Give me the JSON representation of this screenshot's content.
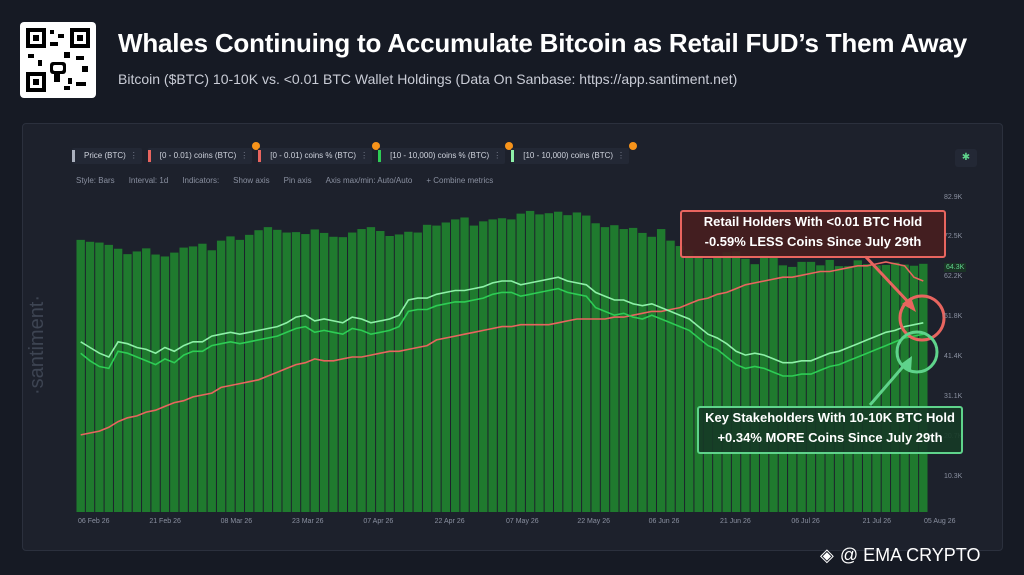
{
  "header": {
    "title": "Whales Continuing to Accumulate Bitcoin as Retail FUD’s Them Away",
    "subtitle": "Bitcoin ($BTC) 10-10K vs. <0.01 BTC Wallet Holdings (Data On Sanbase: https://app.santiment.net)"
  },
  "legend": [
    {
      "label": "Price (BTC)",
      "color": "#aab0bd"
    },
    {
      "label": "[0 - 0.01) coins (BTC)",
      "color": "#e8655f"
    },
    {
      "label": "[0 - 0.01) coins % (BTC)",
      "color": "#e8655f"
    },
    {
      "label": "[10 - 10,000) coins % (BTC)",
      "color": "#2ecc55"
    },
    {
      "label": "[10 - 10,000) coins (BTC)",
      "color": "#8ef0a8"
    }
  ],
  "toolbar": {
    "style": "Style: Bars",
    "interval": "Interval: 1d",
    "indicators": "Indicators:",
    "show_axis": "Show axis",
    "pin_axis": "Pin axis",
    "axis_minmax": "Axis max/min: Auto/Auto",
    "combine": "+ Combine metrics"
  },
  "watermark": "·santiment·",
  "annotations": {
    "retail_line1": "Retail Holders With <0.01 BTC Hold",
    "retail_line2": "-0.59% LESS Coins Since July 29th",
    "whale_line1": "Key Stakeholders With 10-10K BTC Hold",
    "whale_line2": "+0.34% MORE Coins Since July 29th"
  },
  "footer": "@ EMA CRYPTO",
  "chart_data": {
    "type": "bar",
    "x_ticks": [
      "06 Feb 26",
      "21 Feb 26",
      "08 Mar 26",
      "23 Mar 26",
      "07 Apr 26",
      "22 Apr 26",
      "07 May 26",
      "22 May 26",
      "06 Jun 26",
      "21 Jun 26",
      "06 Jul 26",
      "21 Jul 26",
      "05 Aug 26"
    ],
    "y_ticks_right": [
      "82.9K",
      "72.5K",
      "62.2K",
      "51.8K",
      "41.4K",
      "31.1K",
      "20.7K",
      "10.3K"
    ],
    "current_price_tag": "64.3K",
    "ylim": [
      0,
      82900
    ],
    "series": [
      {
        "name": "Price (BTC)",
        "kind": "bar",
        "color": "#1f7a2e",
        "values": [
          70500,
          70000,
          69800,
          69200,
          68200,
          66800,
          67500,
          68300,
          66700,
          66200,
          67200,
          68500,
          68800,
          69500,
          67800,
          70300,
          71400,
          70500,
          71800,
          73000,
          73800,
          73100,
          72400,
          72500,
          72000,
          73200,
          72300,
          71300,
          71200,
          72400,
          73300,
          73800,
          72800,
          71500,
          71900,
          72600,
          72400,
          74400,
          74200,
          75000,
          75800,
          76300,
          74200,
          75300,
          75800,
          76100,
          75800,
          77300,
          78000,
          77100,
          77400,
          77800,
          76900,
          77600,
          76800,
          74800,
          73800,
          74300,
          73300,
          73600,
          72300,
          71300,
          73300,
          70300,
          68900,
          67800,
          66400,
          65600,
          66400,
          67300,
          67500,
          65600,
          64200,
          66500,
          65800,
          63900,
          63500,
          64800,
          64800,
          63900,
          65300,
          63700,
          63700,
          65200,
          64200,
          63900,
          64000,
          64600,
          64100,
          63800,
          64300
        ]
      },
      {
        "name": "[0 - 0.01) coins % (BTC)",
        "kind": "line",
        "color": "#e8655f",
        "values": [
          0.09,
          0.1,
          0.11,
          0.13,
          0.16,
          0.18,
          0.19,
          0.21,
          0.22,
          0.24,
          0.26,
          0.27,
          0.29,
          0.3,
          0.31,
          0.34,
          0.35,
          0.36,
          0.37,
          0.38,
          0.4,
          0.42,
          0.44,
          0.46,
          0.47,
          0.49,
          0.48,
          0.48,
          0.49,
          0.5,
          0.5,
          0.51,
          0.52,
          0.53,
          0.53,
          0.54,
          0.55,
          0.56,
          0.59,
          0.6,
          0.61,
          0.62,
          0.63,
          0.64,
          0.65,
          0.66,
          0.66,
          0.67,
          0.67,
          0.67,
          0.67,
          0.68,
          0.69,
          0.7,
          0.7,
          0.7,
          0.7,
          0.71,
          0.71,
          0.72,
          0.73,
          0.74,
          0.74,
          0.75,
          0.76,
          0.78,
          0.8,
          0.81,
          0.83,
          0.84,
          0.86,
          0.88,
          0.89,
          0.9,
          0.91,
          0.92,
          0.92,
          0.93,
          0.94,
          0.95,
          0.95,
          0.96,
          0.97,
          0.98,
          0.98,
          0.99,
          1.0,
          0.99,
          0.98,
          0.92,
          0.9
        ]
      },
      {
        "name": "[10 - 10,000) coins % (BTC)",
        "kind": "line",
        "color": "#2ecc55",
        "values": [
          0.52,
          0.48,
          0.45,
          0.44,
          0.53,
          0.52,
          0.5,
          0.48,
          0.46,
          0.49,
          0.47,
          0.51,
          0.53,
          0.53,
          0.56,
          0.57,
          0.58,
          0.57,
          0.58,
          0.59,
          0.6,
          0.61,
          0.63,
          0.65,
          0.66,
          0.63,
          0.64,
          0.63,
          0.62,
          0.65,
          0.64,
          0.62,
          0.63,
          0.64,
          0.66,
          0.74,
          0.75,
          0.75,
          0.77,
          0.78,
          0.79,
          0.79,
          0.8,
          0.81,
          0.83,
          0.84,
          0.84,
          0.82,
          0.83,
          0.84,
          0.85,
          0.86,
          0.84,
          0.83,
          0.82,
          0.76,
          0.74,
          0.72,
          0.73,
          0.71,
          0.7,
          0.72,
          0.7,
          0.68,
          0.66,
          0.64,
          0.6,
          0.56,
          0.54,
          0.5,
          0.46,
          0.44,
          0.45,
          0.44,
          0.42,
          0.4,
          0.4,
          0.41,
          0.41,
          0.43,
          0.45,
          0.46,
          0.48,
          0.5,
          0.52,
          0.54,
          0.56,
          0.58,
          0.6,
          0.61,
          0.62
        ]
      },
      {
        "name": "[10 - 10,000) coins (BTC)",
        "kind": "line",
        "color": "#8ef0a8",
        "values": [
          0.58,
          0.55,
          0.52,
          0.5,
          0.58,
          0.57,
          0.55,
          0.54,
          0.52,
          0.55,
          0.53,
          0.56,
          0.58,
          0.58,
          0.61,
          0.62,
          0.63,
          0.62,
          0.63,
          0.64,
          0.65,
          0.66,
          0.68,
          0.71,
          0.72,
          0.69,
          0.7,
          0.69,
          0.68,
          0.71,
          0.7,
          0.68,
          0.69,
          0.7,
          0.72,
          0.8,
          0.81,
          0.81,
          0.83,
          0.84,
          0.85,
          0.85,
          0.86,
          0.87,
          0.89,
          0.9,
          0.9,
          0.88,
          0.89,
          0.9,
          0.91,
          0.92,
          0.9,
          0.89,
          0.88,
          0.84,
          0.82,
          0.8,
          0.8,
          0.78,
          0.77,
          0.78,
          0.76,
          0.74,
          0.72,
          0.7,
          0.66,
          0.62,
          0.6,
          0.57,
          0.53,
          0.51,
          0.52,
          0.51,
          0.49,
          0.47,
          0.47,
          0.48,
          0.48,
          0.5,
          0.52,
          0.53,
          0.55,
          0.57,
          0.59,
          0.61,
          0.63,
          0.64,
          0.66,
          0.67,
          0.68
        ]
      }
    ],
    "grid": false,
    "legend_position": "top-left"
  },
  "colors": {
    "bg": "#161a24",
    "panel": "#1d212c",
    "bar": "#1f7a2e",
    "retail": "#e8655f",
    "whale": "#5fd38b"
  }
}
